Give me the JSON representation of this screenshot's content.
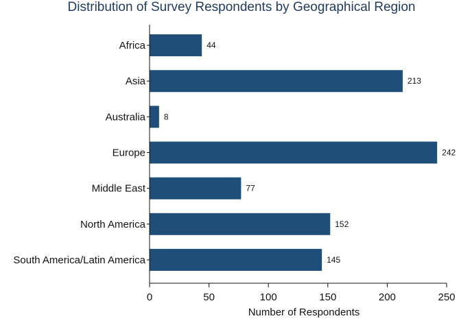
{
  "chart_data": {
    "type": "bar",
    "orientation": "horizontal",
    "title": "Distribution of Survey Respondents by Geographical Region",
    "xlabel": "Number of Respondents",
    "ylabel": "",
    "categories": [
      "Africa",
      "Asia",
      "Australia",
      "Europe",
      "Middle East",
      "North America",
      "South America/Latin America"
    ],
    "values": [
      44,
      213,
      8,
      242,
      77,
      152,
      145
    ],
    "xlim": [
      0,
      250
    ],
    "xticks": [
      0,
      50,
      100,
      150,
      200,
      250
    ],
    "grid": false,
    "legend": "none",
    "data_labels": true,
    "colors": {
      "bar": "#1f4e79",
      "title": "#1f3a5f",
      "axis": "#111111"
    }
  }
}
